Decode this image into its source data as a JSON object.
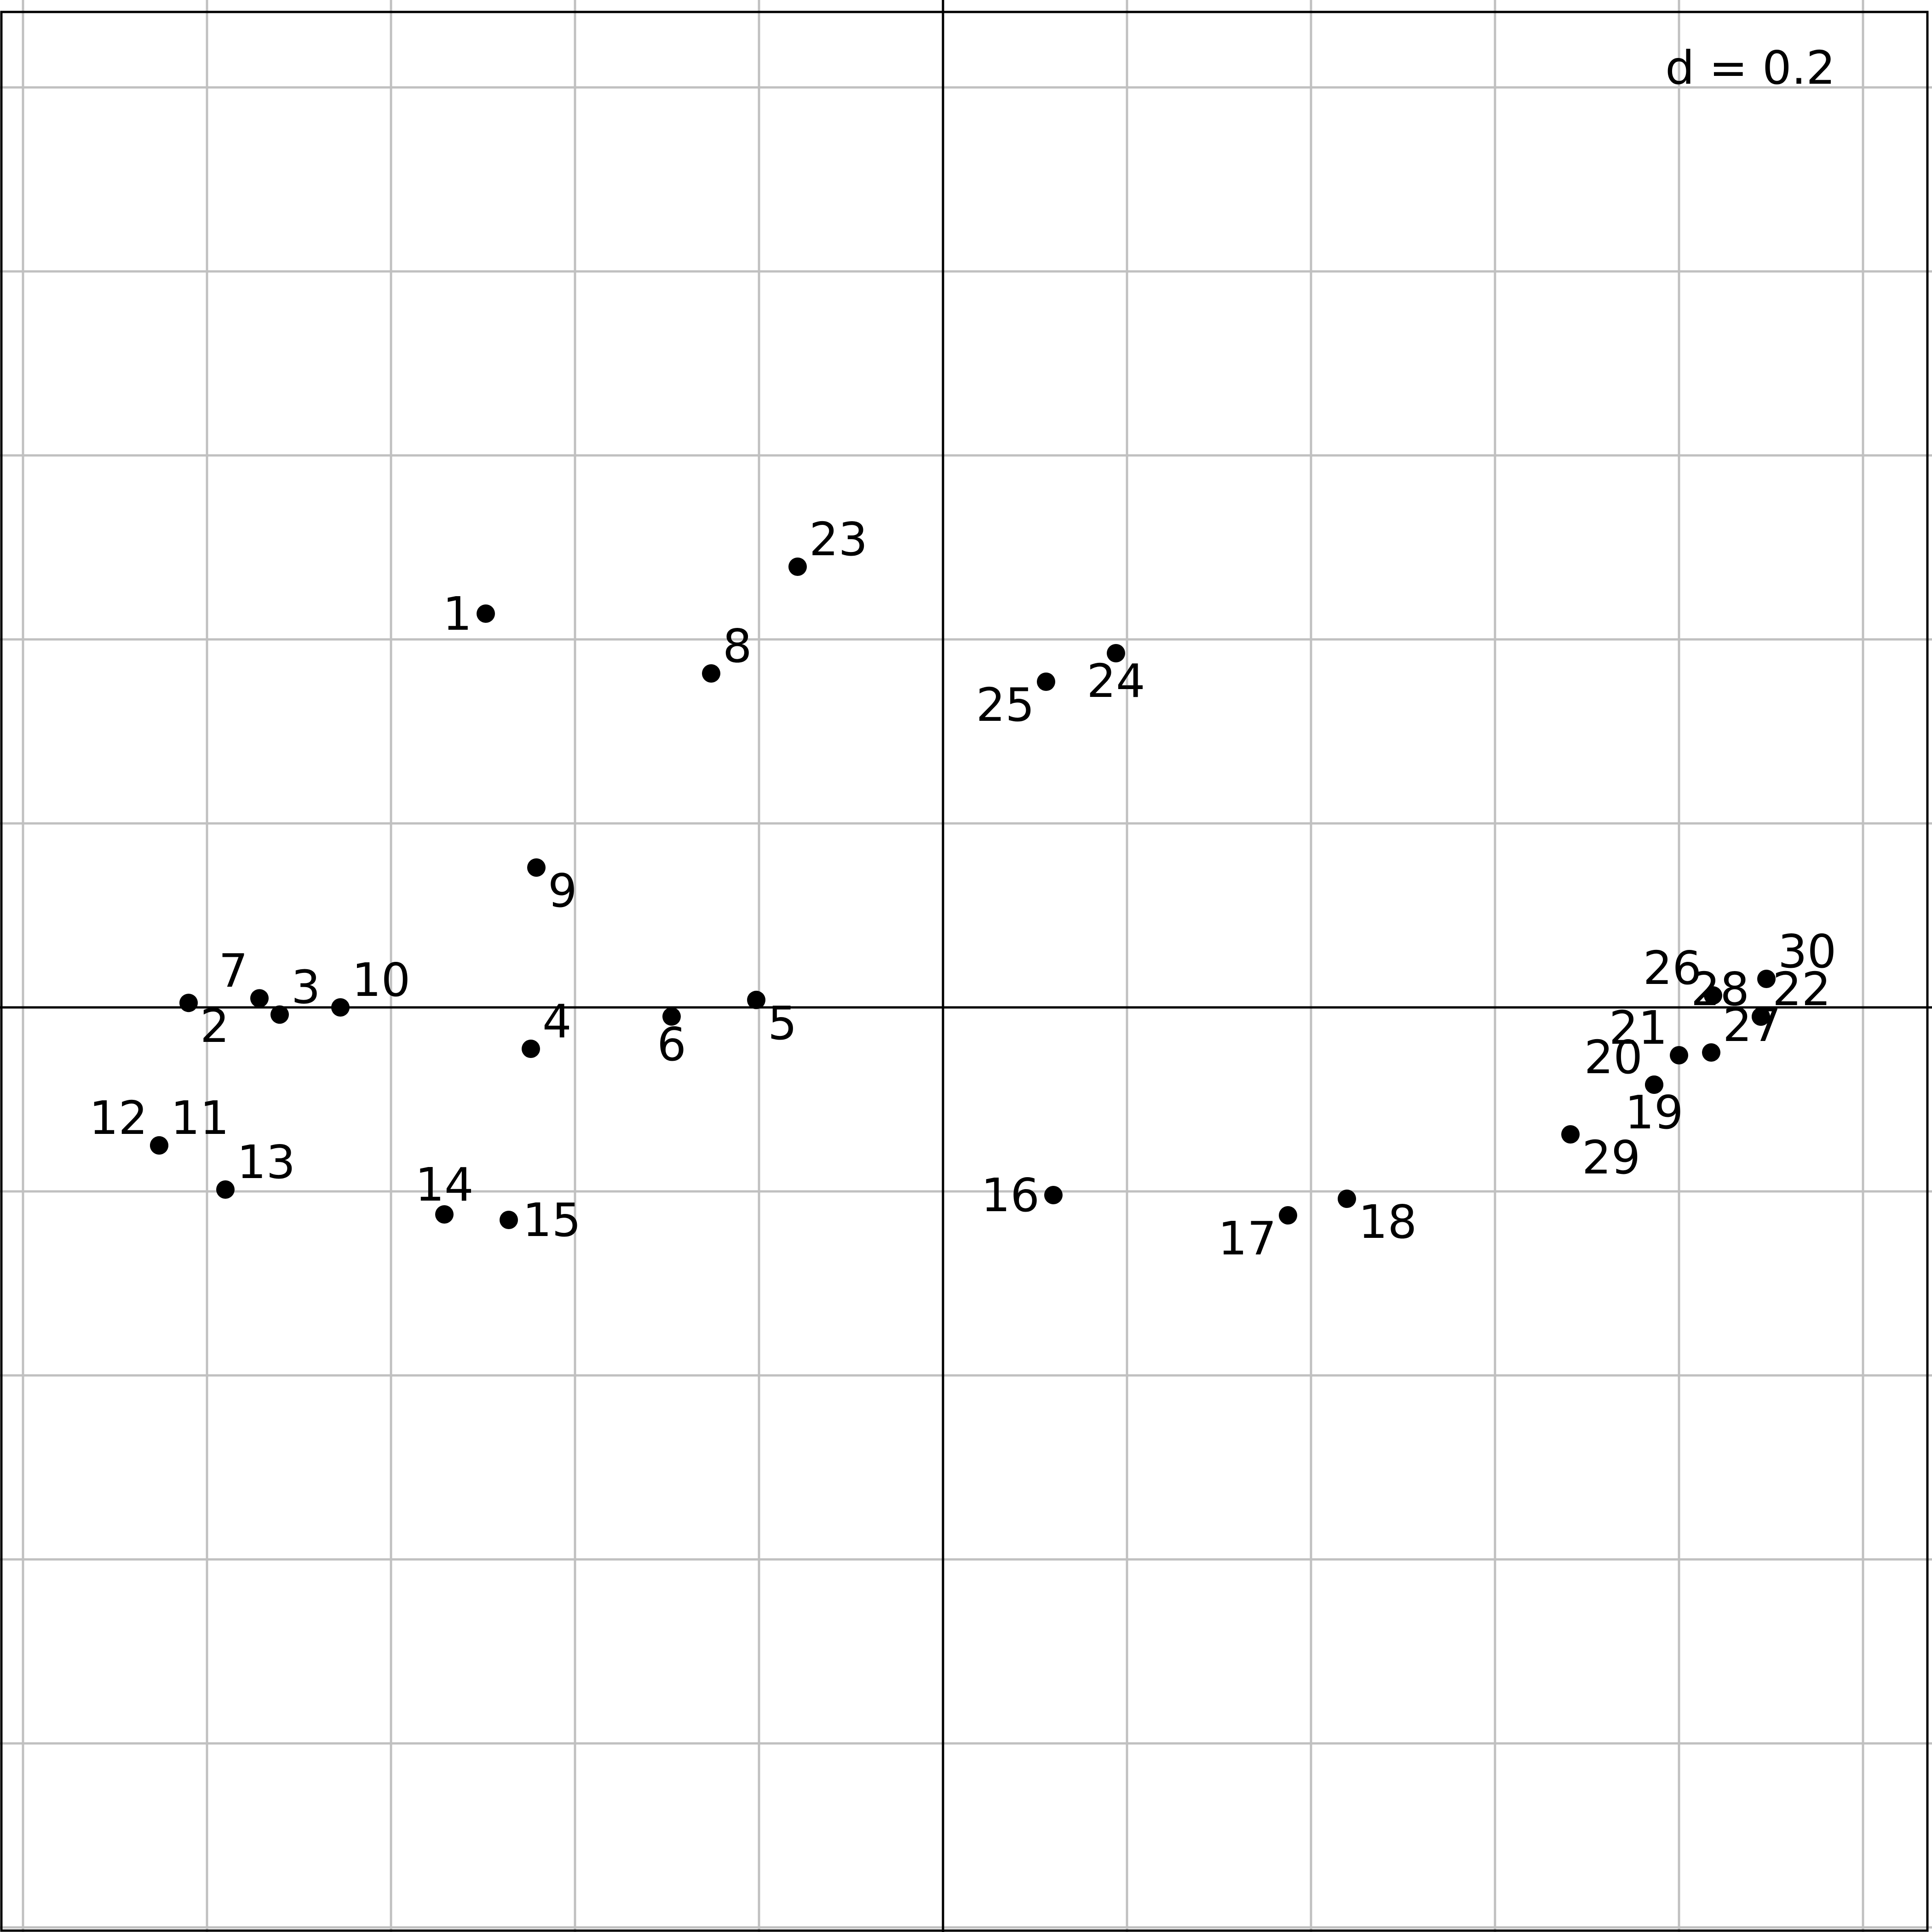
{
  "chart_data": {
    "type": "scatter",
    "scale_label": "d = 0.2",
    "grid_step": 0.2,
    "grid": true,
    "axes_lines_at_origin": true,
    "xlim": [
      -1.025,
      1.075
    ],
    "ylim": [
      -1.005,
      1.095
    ],
    "point_color": "#000000",
    "grid_color": "#c0c0c0",
    "axis_color": "#000000",
    "points": [
      {
        "label": "1",
        "x": -0.497,
        "y": 0.428,
        "label_pos": "left"
      },
      {
        "label": "2",
        "x": -0.82,
        "y": 0.0049,
        "label_pos": "below-right"
      },
      {
        "label": "3",
        "x": -0.721,
        "y": -0.0078,
        "label_pos": "above-right"
      },
      {
        "label": "4",
        "x": -0.448,
        "y": -0.045,
        "label_pos": "above-right"
      },
      {
        "label": "5",
        "x": -0.203,
        "y": 0.0081,
        "label_pos": "below-right"
      },
      {
        "label": "6",
        "x": -0.295,
        "y": -0.0099,
        "label_pos": "below"
      },
      {
        "label": "7",
        "x": -0.743,
        "y": 0.0099,
        "label_pos": "above-left"
      },
      {
        "label": "8",
        "x": -0.252,
        "y": 0.363,
        "label_pos": "above-right"
      },
      {
        "label": "9",
        "x": -0.442,
        "y": 0.152,
        "label_pos": "below-right"
      },
      {
        "label": "10",
        "x": -0.655,
        "y": 0.0,
        "label_pos": "above-right"
      },
      {
        "label": "11",
        "x": -0.852,
        "y": -0.15,
        "label_pos": "above-right"
      },
      {
        "label": "12",
        "x": -0.852,
        "y": -0.15,
        "label_pos": "above-left"
      },
      {
        "label": "13",
        "x": -0.78,
        "y": -0.198,
        "label_pos": "above-right"
      },
      {
        "label": "14",
        "x": -0.542,
        "y": -0.225,
        "label_pos": "above"
      },
      {
        "label": "15",
        "x": -0.472,
        "y": -0.231,
        "label_pos": "right"
      },
      {
        "label": "16",
        "x": 0.12,
        "y": -0.204,
        "label_pos": "left"
      },
      {
        "label": "17",
        "x": 0.375,
        "y": -0.226,
        "label_pos": "below-left"
      },
      {
        "label": "18",
        "x": 0.439,
        "y": -0.208,
        "label_pos": "below-right"
      },
      {
        "label": "19",
        "x": 0.773,
        "y": -0.084,
        "label_pos": "below"
      },
      {
        "label": "20",
        "x": 0.773,
        "y": -0.084,
        "label_pos": "above-left"
      },
      {
        "label": "21",
        "x": 0.8,
        "y": -0.052,
        "label_pos": "above-left"
      },
      {
        "label": "22",
        "x": 0.889,
        "y": -0.01,
        "label_pos": "above-right"
      },
      {
        "label": "23",
        "x": -0.158,
        "y": 0.479,
        "label_pos": "above-right"
      },
      {
        "label": "24",
        "x": 0.188,
        "y": 0.385,
        "label_pos": "below"
      },
      {
        "label": "25",
        "x": 0.112,
        "y": 0.354,
        "label_pos": "below-left"
      },
      {
        "label": "26",
        "x": 0.837,
        "y": 0.013,
        "label_pos": "above-left"
      },
      {
        "label": "27",
        "x": 0.835,
        "y": -0.049,
        "label_pos": "above-right"
      },
      {
        "label": "28",
        "x": 0.889,
        "y": -0.01,
        "label_pos": "above-left"
      },
      {
        "label": "29",
        "x": 0.682,
        "y": -0.138,
        "label_pos": "below-right"
      },
      {
        "label": "30",
        "x": 0.895,
        "y": 0.031,
        "label_pos": "above-right"
      }
    ]
  }
}
